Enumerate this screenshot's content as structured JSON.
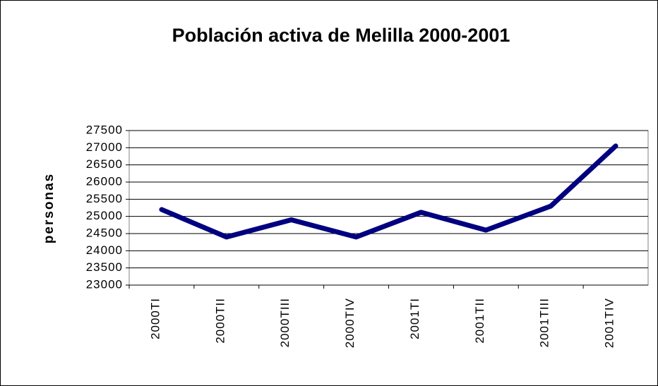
{
  "chart_data": {
    "type": "line",
    "title": "Población activa de Melilla 2000-2001",
    "y_label": "personas",
    "categories": [
      "2000TI",
      "2000TII",
      "2000TIII",
      "2000TIV",
      "2001TI",
      "2001TII",
      "2001TIII",
      "2001TIV"
    ],
    "series": [
      {
        "name": "personas",
        "color": "#000080",
        "values": [
          25200,
          24400,
          24900,
          24400,
          25120,
          24600,
          25300,
          27050
        ]
      }
    ],
    "ylim": [
      23000,
      27500
    ],
    "yticks": [
      23000,
      23500,
      24000,
      24500,
      25000,
      25500,
      26000,
      26500,
      27000,
      27500
    ],
    "grid": true
  }
}
